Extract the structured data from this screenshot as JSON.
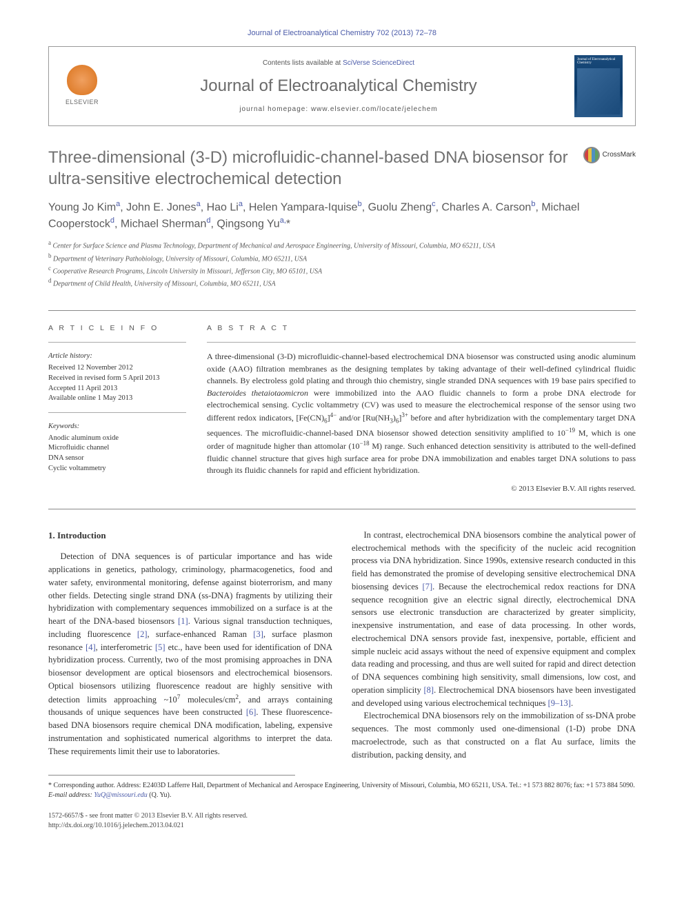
{
  "header": {
    "citation": "Journal of Electroanalytical Chemistry 702 (2013) 72–78",
    "contents_prefix": "Contents lists available at ",
    "contents_link": "SciVerse ScienceDirect",
    "journal_name": "Journal of Electroanalytical Chemistry",
    "homepage_prefix": "journal homepage: ",
    "homepage_url": "www.elsevier.com/locate/jelechem",
    "publisher": "ELSEVIER",
    "cover_title": "Journal of Electroanalytical Chemistry"
  },
  "crossmark": "CrossMark",
  "article": {
    "title": "Three-dimensional (3-D) microfluidic-channel-based DNA biosensor for ultra-sensitive electrochemical detection",
    "authors_html": "Young Jo Kim<sup>a</sup>, John E. Jones<sup>a</sup>, Hao Li<sup>a</sup>, Helen Yampara-Iquise<sup>b</sup>, Guolu Zheng<sup>c</sup>, Charles A. Carson<sup>b</sup>, Michael Cooperstock<sup>d</sup>, Michael Sherman<sup>d</sup>, Qingsong Yu<sup>a,</sup>*",
    "affiliations": [
      {
        "sup": "a",
        "text": "Center for Surface Science and Plasma Technology, Department of Mechanical and Aerospace Engineering, University of Missouri, Columbia, MO 65211, USA"
      },
      {
        "sup": "b",
        "text": "Department of Veterinary Pathobiology, University of Missouri, Columbia, MO 65211, USA"
      },
      {
        "sup": "c",
        "text": "Cooperative Research Programs, Lincoln University in Missouri, Jefferson City, MO 65101, USA"
      },
      {
        "sup": "d",
        "text": "Department of Child Health, University of Missouri, Columbia, MO 65211, USA"
      }
    ]
  },
  "info": {
    "heading": "A R T I C L E   I N F O",
    "history_label": "Article history:",
    "history": [
      "Received 12 November 2012",
      "Received in revised form 5 April 2013",
      "Accepted 11 April 2013",
      "Available online 1 May 2013"
    ],
    "keywords_label": "Keywords:",
    "keywords": [
      "Anodic aluminum oxide",
      "Microfluidic channel",
      "DNA sensor",
      "Cyclic voltammetry"
    ]
  },
  "abstract": {
    "heading": "A B S T R A C T",
    "text_html": "A three-dimensional (3-D) microfluidic-channel-based electrochemical DNA biosensor was constructed using anodic aluminum oxide (AAO) filtration membranes as the designing templates by taking advantage of their well-defined cylindrical fluidic channels. By electroless gold plating and through thio chemistry, single stranded DNA sequences with 19 base pairs specified to <i>Bacteroides thetaiotaomicron</i> were immobilized into the AAO fluidic channels to form a probe DNA electrode for electrochemical sensing. Cyclic voltammetry (CV) was used to measure the electrochemical response of the sensor using two different redox indicators, [Fe(CN)<sub>6</sub>]<sup>4−</sup> and/or [Ru(NH<sub>3</sub>)<sub>6</sub>]<sup>3+</sup> before and after hybridization with the complementary target DNA sequences. The microfluidic-channel-based DNA biosensor showed detection sensitivity amplified to 10<sup>−19</sup> M, which is one order of magnitude higher than attomolar (10<sup>−18</sup> M) range. Such enhanced detection sensitivity is attributed to the well-defined fluidic channel structure that gives high surface area for probe DNA immobilization and enables target DNA solutions to pass through its fluidic channels for rapid and efficient hybridization.",
    "copyright": "© 2013 Elsevier B.V. All rights reserved."
  },
  "body": {
    "section_heading": "1. Introduction",
    "para1_html": "Detection of DNA sequences is of particular importance and has wide applications in genetics, pathology, criminology, pharmacogenetics, food and water safety, environmental monitoring, defense against bioterrorism, and many other fields. Detecting single strand DNA (ss-DNA) fragments by utilizing their hybridization with complementary sequences immobilized on a surface is at the heart of the DNA-based biosensors <span class=\"ref\">[1]</span>. Various signal transduction techniques, including fluorescence <span class=\"ref\">[2]</span>, surface-enhanced Raman <span class=\"ref\">[3]</span>, surface plasmon resonance <span class=\"ref\">[4]</span>, interferometric <span class=\"ref\">[5]</span> etc., have been used for identification of DNA hybridization process. Currently, two of the most promising approaches in DNA biosensor development are optical biosensors and electrochemical biosensors. Optical biosensors utilizing fluorescence readout are highly sensitive with detection limits approaching ~10<sup>7</sup> molecules/cm<sup>2</sup>, and arrays containing thousands of unique sequences have been constructed <span class=\"ref\">[6]</span>. These fluorescence-based DNA biosensors require chemical DNA modification, labeling, expensive instrumentation and sophisticated numerical algorithms to interpret the data. These requirements limit their use to laboratories.",
    "para2_html": "In contrast, electrochemical DNA biosensors combine the analytical power of electrochemical methods with the specificity of the nucleic acid recognition process via DNA hybridization. Since 1990s, extensive research conducted in this field has demonstrated the promise of developing sensitive electrochemical DNA biosensing devices <span class=\"ref\">[7]</span>. Because the electrochemical redox reactions for DNA sequence recognition give an electric signal directly, electrochemical DNA sensors use electronic transduction are characterized by greater simplicity, inexpensive instrumentation, and ease of data processing. In other words, electrochemical DNA sensors provide fast, inexpensive, portable, efficient and simple nucleic acid assays without the need of expensive equipment and complex data reading and processing, and thus are well suited for rapid and direct detection of DNA sequences combining high sensitivity, small dimensions, low cost, and operation simplicity <span class=\"ref\">[8]</span>. Electrochemical DNA biosensors have been investigated and developed using various electrochemical techniques <span class=\"ref\">[9–13]</span>.",
    "para3_html": "Electrochemical DNA biosensors rely on the immobilization of ss-DNA probe sequences. The most commonly used one-dimensional (1-D) probe DNA macroelectrode, such as that constructed on a flat Au surface, limits the distribution, packing density, and"
  },
  "corresponding": {
    "label": "* Corresponding author. Address: E2403D Lafferre Hall, Department of Mechanical and Aerospace Engineering, University of Missouri, Columbia, MO 65211, USA. Tel.: +1 573 882 8076; fax: +1 573 884 5090.",
    "email_label": "E-mail address:",
    "email": "YuQ@missouri.edu",
    "email_suffix": "(Q. Yu)."
  },
  "footer": {
    "line1": "1572-6657/$ - see front matter © 2013 Elsevier B.V. All rights reserved.",
    "line2": "http://dx.doi.org/10.1016/j.jelechem.2013.04.021"
  },
  "colors": {
    "link": "#4a5aa8",
    "title_gray": "#707070",
    "text": "#333333",
    "border": "#999999"
  }
}
